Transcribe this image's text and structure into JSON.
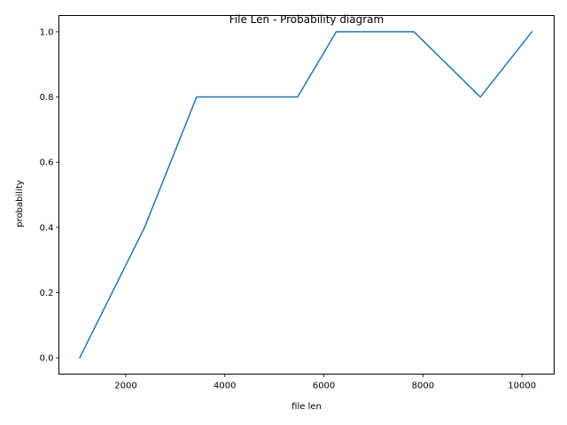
{
  "chart_data": {
    "type": "line",
    "title": "File Len - Probability diagram",
    "xlabel": "file len",
    "ylabel": "probability",
    "xlim": [
      650,
      10650
    ],
    "ylim": [
      -0.05,
      1.05
    ],
    "x_ticks": [
      2000,
      4000,
      6000,
      8000,
      10000
    ],
    "x_tick_labels": [
      "2000",
      "4000",
      "6000",
      "8000",
      "10000"
    ],
    "y_ticks": [
      0.0,
      0.2,
      0.4,
      0.6,
      0.8,
      1.0
    ],
    "y_tick_labels": [
      "0.0",
      "0.2",
      "0.4",
      "0.6",
      "0.8",
      "1.0"
    ],
    "grid": false,
    "series": [
      {
        "color": "#1f77b4",
        "x": [
          1070,
          2380,
          3430,
          5470,
          6250,
          7820,
          9160,
          10200
        ],
        "y": [
          0.0,
          0.4,
          0.8,
          0.8,
          1.0,
          1.0,
          0.8,
          1.0
        ]
      }
    ]
  }
}
